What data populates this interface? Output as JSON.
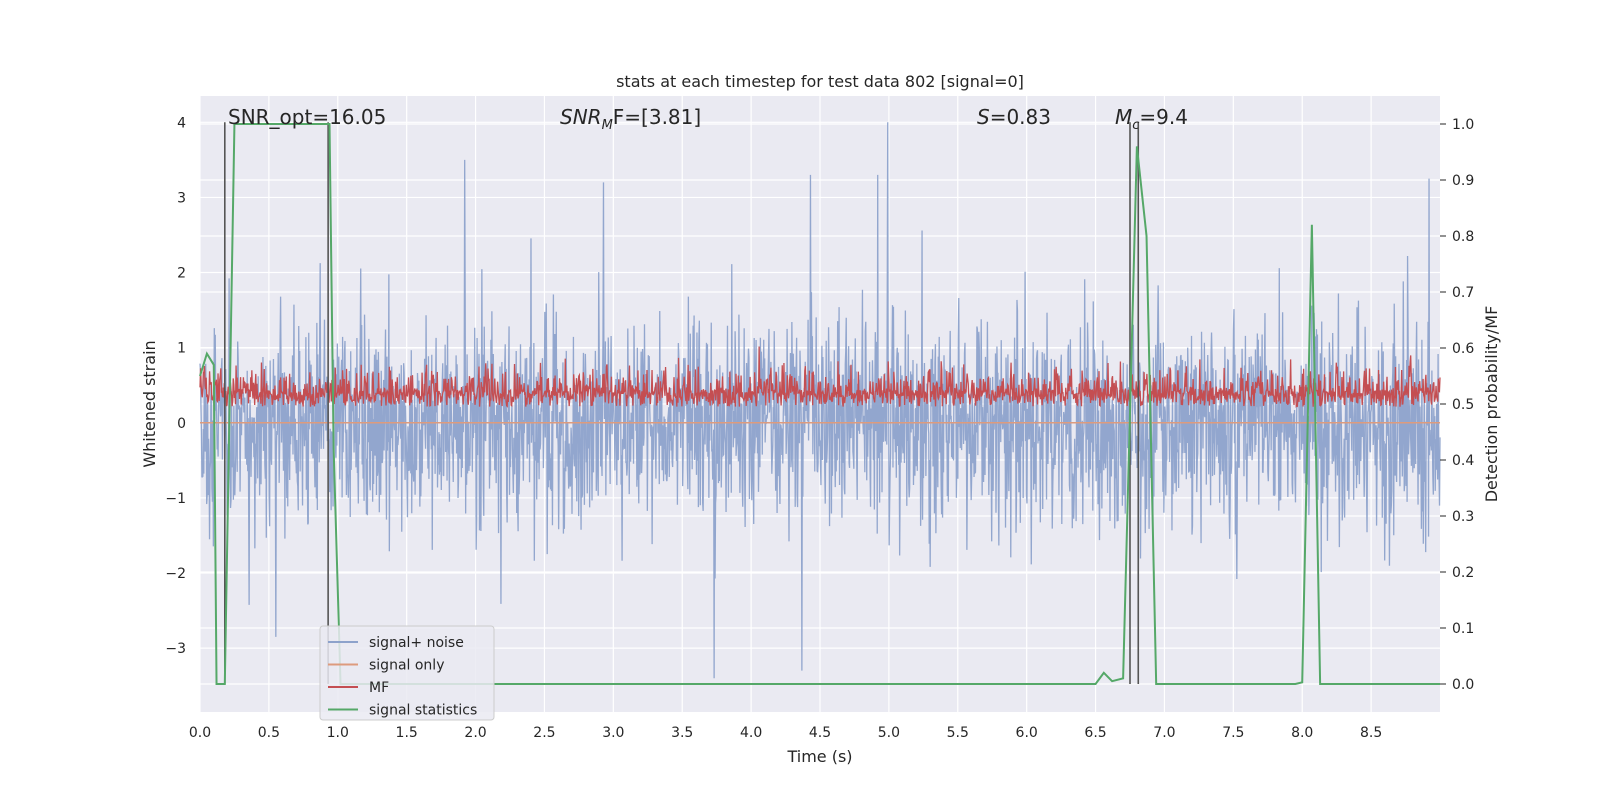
{
  "chart_data": {
    "type": "line",
    "title": "stats at each timestep for test data 802 [signal=0]",
    "xlabel": "Time (s)",
    "ylabel_left": "Whitened strain",
    "ylabel_right": "Detection probability/MF",
    "xlim": [
      0.0,
      9.0
    ],
    "ylim_left": [
      -3.85,
      4.35
    ],
    "ylim_right": [
      -0.05,
      1.05
    ],
    "xticks": [
      "0.0",
      "0.5",
      "1.0",
      "1.5",
      "2.0",
      "2.5",
      "3.0",
      "3.5",
      "4.0",
      "4.5",
      "5.0",
      "5.5",
      "6.0",
      "6.5",
      "7.0",
      "7.5",
      "8.0",
      "8.5"
    ],
    "yticks_left": [
      "−3",
      "−2",
      "−1",
      "0",
      "1",
      "2",
      "3",
      "4"
    ],
    "yticks_right": [
      "0.0",
      "0.1",
      "0.2",
      "0.3",
      "0.4",
      "0.5",
      "0.6",
      "0.7",
      "0.8",
      "0.9",
      "1.0"
    ],
    "grid": true,
    "legend_position": "lower-left",
    "annotations": {
      "snr_opt": "SNR_opt=16.05",
      "snr_mf_base": "SNR",
      "snr_mf_sub": "M",
      "snr_mf_rest": "F=[3.81]",
      "s_base": "S",
      "s_rest": "=0.83",
      "mc_base": "M",
      "mc_sub": "c",
      "mc_rest": "=9.4"
    },
    "series": [
      {
        "name": "signal+ noise",
        "color": "#8da2cb",
        "axis": "left",
        "style": "dense noise",
        "x_range": [
          0.0,
          9.0
        ],
        "envelope_typical": [
          -2.0,
          2.0
        ],
        "peaks": [
          {
            "x": 1.92,
            "y": 3.5
          },
          {
            "x": 2.93,
            "y": 3.2
          },
          {
            "x": 4.43,
            "y": 3.3
          },
          {
            "x": 4.92,
            "y": 3.3
          },
          {
            "x": 4.99,
            "y": 4.0
          },
          {
            "x": 8.92,
            "y": 3.25
          },
          {
            "x": 3.73,
            "y": -3.4
          },
          {
            "x": 4.37,
            "y": -3.3
          },
          {
            "x": 0.55,
            "y": -2.85
          }
        ]
      },
      {
        "name": "signal only",
        "color": "#dd9b7d",
        "axis": "left",
        "x": [
          0.0,
          9.0
        ],
        "y": [
          0.0,
          0.0
        ]
      },
      {
        "name": "MF",
        "color": "#c44e52",
        "axis": "right",
        "style": "dense noise",
        "x_range": [
          0.0,
          9.0
        ],
        "baseline": 0.5,
        "envelope_typical": [
          0.48,
          0.62
        ]
      },
      {
        "name": "signal statistics",
        "color": "#55a868",
        "axis": "right",
        "x": [
          0.0,
          0.05,
          0.1,
          0.12,
          0.18,
          0.25,
          0.9,
          0.94,
          0.97,
          1.02,
          6.45,
          6.5,
          6.56,
          6.62,
          6.7,
          6.8,
          6.87,
          6.94,
          7.0,
          7.95,
          8.0,
          8.07,
          8.13,
          8.2,
          9.0
        ],
        "y": [
          0.55,
          0.59,
          0.57,
          0.0,
          0.0,
          1.0,
          1.0,
          1.0,
          0.42,
          0.0,
          0.0,
          0.0,
          0.02,
          0.005,
          0.01,
          0.96,
          0.8,
          0.0,
          0.0,
          0.0,
          0.003,
          0.82,
          0.0,
          0.0,
          0.0
        ]
      }
    ],
    "vertical_markers": [
      {
        "x": 0.18,
        "y_top": 4.0
      },
      {
        "x": 0.93,
        "y_top": 4.0
      },
      {
        "x": 6.75,
        "y_top": 4.0
      },
      {
        "x": 6.81,
        "y_top": 4.0
      }
    ],
    "colors": {
      "background": "#eaeaf2",
      "grid": "#ffffff",
      "marker": "#555555"
    }
  }
}
